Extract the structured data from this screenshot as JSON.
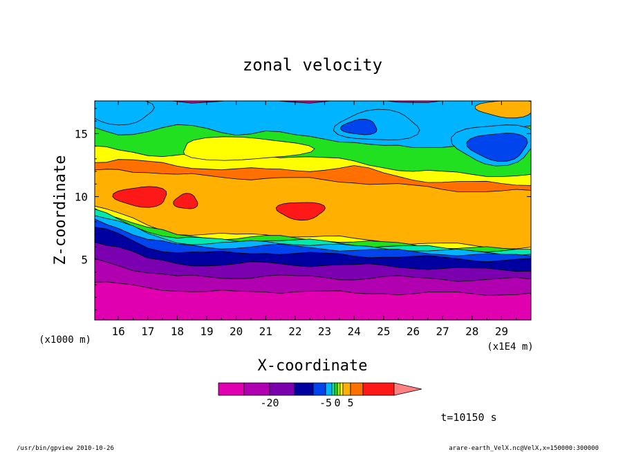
{
  "chart_data": {
    "type": "heatmap",
    "title": "zonal velocity",
    "xlabel": "X-coordinate",
    "ylabel": "Z-coordinate",
    "x_unit": "(x1E4 m)",
    "y_unit": "(x1000 m)",
    "xlim": [
      15.2,
      30.0
    ],
    "ylim": [
      0.2,
      17.6
    ],
    "x_ticks": [
      16,
      17,
      18,
      19,
      20,
      21,
      22,
      23,
      24,
      25,
      26,
      27,
      28,
      29
    ],
    "y_ticks": [
      5,
      10,
      15
    ],
    "time_label": "t=10150 s",
    "colorbar": {
      "levels": [
        -30,
        -25,
        -20,
        -15,
        -10,
        -5,
        -2.5,
        -1,
        0,
        1,
        2.5,
        5,
        10,
        15,
        20
      ],
      "colors": [
        "#e000b0",
        "#b000b0",
        "#7a00b0",
        "#0000a0",
        "#0044ee",
        "#00b4ff",
        "#00e8b0",
        "#20e020",
        "#a0f000",
        "#ffff00",
        "#ffb000",
        "#ff7000",
        "#ff1818",
        "#ff8080"
      ],
      "tick_labels": [
        {
          "level": -20,
          "text": "-20"
        },
        {
          "level": -5,
          "text": "-5"
        },
        {
          "level": 0,
          "text": "0"
        },
        {
          "level": 5,
          "text": "5"
        }
      ]
    },
    "bands": [
      {
        "name": "lowest",
        "value": -25,
        "color": "#e000b0",
        "top": [
          3.2,
          3.0,
          2.8,
          2.6,
          2.4,
          2.4,
          2.5,
          2.5,
          2.4,
          2.3,
          2.4,
          2.3,
          2.3,
          2.3,
          2.3,
          2.3
        ]
      },
      {
        "name": "band-2",
        "value": -20,
        "color": "#b000b0",
        "top": [
          5.0,
          4.6,
          4.0,
          3.6,
          3.6,
          3.6,
          3.7,
          3.6,
          3.6,
          3.5,
          3.6,
          3.5,
          3.5,
          3.4,
          3.4,
          3.4
        ]
      },
      {
        "name": "band-3",
        "value": -15,
        "color": "#7a00b0",
        "top": [
          6.5,
          6.0,
          5.0,
          4.7,
          4.6,
          4.6,
          4.7,
          4.6,
          4.6,
          4.5,
          4.5,
          4.4,
          4.3,
          4.2,
          4.2,
          4.2
        ]
      },
      {
        "name": "band-4",
        "value": -10,
        "color": "#0000a0",
        "top": [
          7.5,
          7.0,
          6.0,
          5.6,
          5.5,
          5.5,
          5.6,
          5.5,
          5.4,
          5.3,
          5.3,
          5.2,
          5.1,
          5.0,
          5.0,
          5.0
        ]
      },
      {
        "name": "band-5",
        "value": -5,
        "color": "#0044ee",
        "top": [
          8.2,
          7.6,
          6.6,
          6.1,
          6.0,
          6.0,
          6.1,
          6.0,
          5.9,
          5.8,
          5.7,
          5.6,
          5.5,
          5.4,
          5.3,
          5.3
        ]
      },
      {
        "name": "band-6",
        "value": -2.5,
        "color": "#00b4ff",
        "top": [
          8.6,
          8.0,
          7.0,
          6.4,
          6.3,
          6.3,
          6.4,
          6.3,
          6.2,
          6.0,
          5.9,
          5.8,
          5.7,
          5.6,
          5.5,
          5.5
        ]
      },
      {
        "name": "band-7",
        "value": -1,
        "color": "#00e8b0",
        "top": [
          8.9,
          8.2,
          7.3,
          6.7,
          6.6,
          6.5,
          6.6,
          6.5,
          6.4,
          6.2,
          6.1,
          6.0,
          5.9,
          5.8,
          5.7,
          5.7
        ]
      },
      {
        "name": "band-8",
        "value": 0,
        "color": "#20e020",
        "top": [
          9.1,
          8.4,
          7.5,
          6.9,
          6.8,
          6.7,
          6.8,
          6.7,
          6.6,
          6.4,
          6.3,
          6.2,
          6.0,
          5.9,
          5.8,
          5.8
        ]
      },
      {
        "name": "band-9",
        "value": 1,
        "color": "#ffff00",
        "top": [
          9.3,
          8.6,
          7.7,
          7.1,
          7.0,
          6.9,
          7.0,
          6.9,
          6.8,
          6.6,
          6.5,
          6.3,
          6.2,
          6.1,
          6.0,
          6.0
        ]
      },
      {
        "name": "band-10",
        "value": 2.5,
        "color": "#ffb000",
        "top": [
          12.0,
          12.2,
          12.0,
          11.7,
          11.6,
          11.5,
          11.5,
          11.4,
          11.3,
          11.2,
          11.0,
          10.8,
          10.6,
          10.5,
          10.4,
          10.4
        ]
      },
      {
        "name": "band-11",
        "value": 5,
        "color": "#ff7000",
        "top": [
          12.8,
          13.0,
          12.7,
          12.4,
          12.3,
          12.2,
          12.1,
          12.1,
          12.2,
          12.4,
          11.8,
          11.4,
          11.2,
          11.1,
          11.0,
          11.0
        ]
      },
      {
        "name": "band-12",
        "value": 1,
        "color": "#ffff00",
        "top": [
          14.0,
          13.6,
          13.3,
          13.4,
          13.5,
          13.4,
          13.3,
          13.2,
          13.0,
          12.8,
          12.4,
          12.0,
          11.9,
          11.8,
          11.7,
          11.7
        ]
      },
      {
        "name": "band-13",
        "value": 0,
        "color": "#20e020",
        "top": [
          15.4,
          15.0,
          15.2,
          15.6,
          15.4,
          15.0,
          15.2,
          14.8,
          14.6,
          14.4,
          14.0,
          13.8,
          14.0,
          14.4,
          15.0,
          15.6
        ]
      },
      {
        "name": "band-14",
        "value": -2.5,
        "color": "#00b4ff",
        "top": [
          17.6,
          17.6,
          17.6,
          17.6,
          17.6,
          17.6,
          17.6,
          17.6,
          17.6,
          17.6,
          17.6,
          17.6,
          17.6,
          17.6,
          17.6,
          17.6
        ]
      }
    ],
    "band_x": [
      15.2,
      16.0,
      17.0,
      18.0,
      19.0,
      20.0,
      21.0,
      22.0,
      23.0,
      24.0,
      25.0,
      26.0,
      27.0,
      28.0,
      29.0,
      30.0
    ],
    "patches": [
      {
        "name": "max-core-1",
        "color": "#ff1818",
        "cx": 16.8,
        "cy": 10.0,
        "rx": 0.9,
        "ry": 0.8
      },
      {
        "name": "max-core-2",
        "color": "#ff1818",
        "cx": 18.3,
        "cy": 9.6,
        "rx": 0.4,
        "ry": 0.6
      },
      {
        "name": "max-core-3",
        "color": "#ff1818",
        "cx": 22.2,
        "cy": 8.9,
        "rx": 0.8,
        "ry": 0.7
      },
      {
        "name": "upper-cyan-1",
        "color": "#00b4ff",
        "cx": 16.0,
        "cy": 16.8,
        "rx": 1.2,
        "ry": 1.0
      },
      {
        "name": "upper-cyan-2",
        "color": "#00b4ff",
        "cx": 24.8,
        "cy": 15.6,
        "rx": 1.4,
        "ry": 1.2
      },
      {
        "name": "upper-cyan-3",
        "color": "#00b4ff",
        "cx": 28.8,
        "cy": 14.2,
        "rx": 1.4,
        "ry": 1.6
      },
      {
        "name": "upper-blue-1",
        "color": "#0044ee",
        "cx": 24.2,
        "cy": 15.5,
        "rx": 0.6,
        "ry": 0.6
      },
      {
        "name": "upper-blue-2",
        "color": "#0044ee",
        "cx": 28.9,
        "cy": 14.0,
        "rx": 1.0,
        "ry": 1.1
      },
      {
        "name": "upper-yellow",
        "color": "#ffff00",
        "cx": 20.2,
        "cy": 13.8,
        "rx": 2.2,
        "ry": 0.9
      },
      {
        "name": "upper-orange",
        "color": "#ffb000",
        "cx": 29.2,
        "cy": 17.0,
        "rx": 1.0,
        "ry": 0.7
      }
    ],
    "footer_left": "/usr/bin/gpview  2010-10-26",
    "footer_right": "arare-earth_VelX.nc@VelX,x=150000:300000"
  }
}
